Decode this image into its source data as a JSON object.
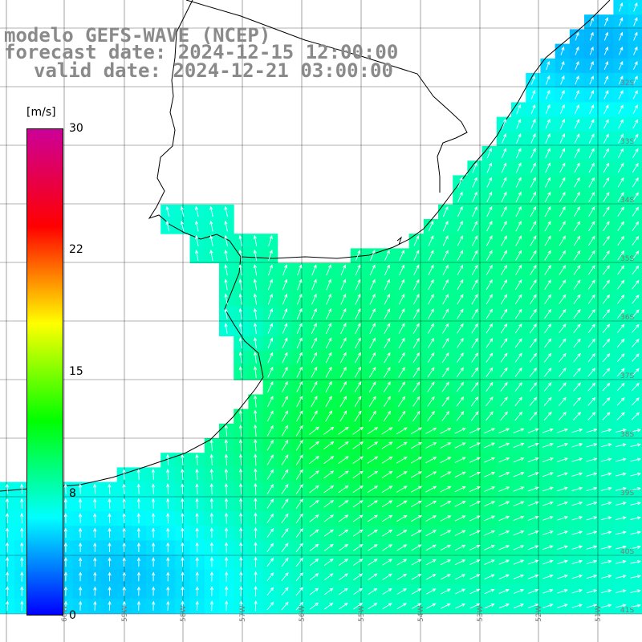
{
  "title": {
    "line1": "modelo GEFS-WAVE (NCEP)",
    "line2": "forecast date: 2024-12-15 12:00:00",
    "line3": "valid date: 2024-12-21 03:00:00"
  },
  "colorbar": {
    "unit": "[m/s]",
    "ticks": [
      "30",
      "22",
      "15",
      "8",
      "0"
    ],
    "range": [
      0,
      30
    ],
    "colors": [
      "#0000ff",
      "#00ffff",
      "#00ff00",
      "#ffff00",
      "#ff0000",
      "#cc0099"
    ]
  },
  "map": {
    "field": "wind speed and direction",
    "lat_labels": [
      "32S",
      "33S",
      "34S",
      "35S",
      "36S",
      "37S",
      "38S",
      "39S",
      "40S",
      "41S"
    ],
    "lon_labels": [
      "60W",
      "59W",
      "58W",
      "57W",
      "56W",
      "55W",
      "54W",
      "53W",
      "52W",
      "51W"
    ],
    "grid_color": "#000000",
    "coast_color": "#000000",
    "arrow_color": "#ffffff"
  }
}
